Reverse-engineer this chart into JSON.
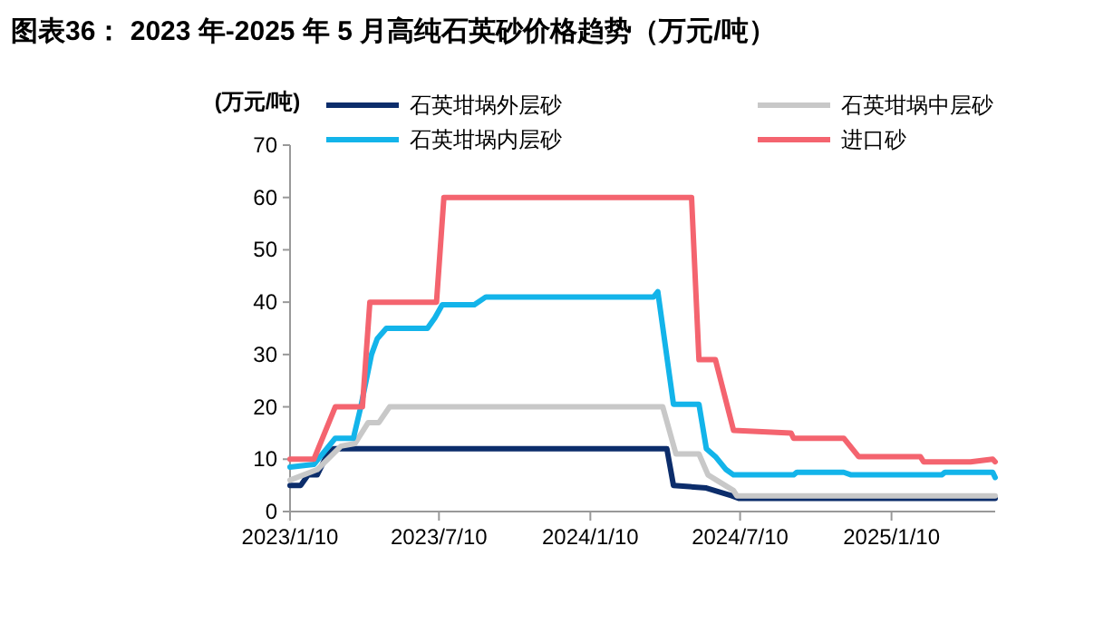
{
  "chart_data": {
    "type": "line",
    "title": "图表36： 2023 年-2025 年 5 月高纯石英砂价格趋势（万元/吨）",
    "ylabel": "(万元/吨)",
    "xlim": [
      "2023-01-10",
      "2025-05-16"
    ],
    "xticks": [
      {
        "value": "2023-01-10",
        "label": "2023/1/10"
      },
      {
        "value": "2023-07-10",
        "label": "2023/7/10"
      },
      {
        "value": "2024-01-10",
        "label": "2024/1/10"
      },
      {
        "value": "2024-07-10",
        "label": "2024/7/10"
      },
      {
        "value": "2025-01-10",
        "label": "2025/1/10"
      }
    ],
    "ylim": [
      0,
      70
    ],
    "yticks": [
      0,
      10,
      20,
      30,
      40,
      50,
      60,
      70
    ],
    "grid": false,
    "legend": "top",
    "marker": "none",
    "line_style": "solid",
    "series": [
      {
        "name": "石英坩埚外层砂",
        "color": "#0c2d6b",
        "x": [
          "2023-01-10",
          "2023-01-23",
          "2023-02-01",
          "2023-02-12",
          "2023-02-23",
          "2023-03-04",
          "2024-04-12",
          "2024-04-20",
          "2024-05-30",
          "2024-06-30",
          "2024-07-09",
          "2025-05-16"
        ],
        "values": [
          5,
          5,
          7,
          7,
          10.5,
          12,
          12,
          5,
          4.5,
          3,
          2.5,
          2.5
        ]
      },
      {
        "name": "石英坩埚中层砂",
        "color": "#c8c8c8",
        "x": [
          "2023-01-10",
          "2023-02-12",
          "2023-03-13",
          "2023-03-30",
          "2023-04-15",
          "2023-04-28",
          "2023-05-11",
          "2024-04-07",
          "2024-04-23",
          "2024-05-21",
          "2024-06-01",
          "2024-07-02",
          "2024-07-06",
          "2025-05-16"
        ],
        "values": [
          6,
          8,
          12.5,
          13,
          17,
          17,
          20,
          20,
          11,
          11,
          7,
          4,
          3,
          3
        ]
      },
      {
        "name": "石英坩埚内层砂",
        "color": "#13b4ea",
        "x": [
          "2023-01-10",
          "2023-02-08",
          "2023-03-06",
          "2023-03-28",
          "2023-04-06",
          "2023-04-19",
          "2023-04-26",
          "2023-05-07",
          "2023-06-26",
          "2023-07-05",
          "2023-07-14",
          "2023-08-22",
          "2023-09-05",
          "2024-03-27",
          "2024-04-01",
          "2024-04-20",
          "2024-05-21",
          "2024-05-30",
          "2024-06-10",
          "2024-06-23",
          "2024-07-02",
          "2024-09-13",
          "2024-09-17",
          "2024-11-13",
          "2024-11-22",
          "2025-03-12",
          "2025-03-16",
          "2025-05-13",
          "2025-05-16"
        ],
        "values": [
          8.5,
          9,
          14,
          14,
          20,
          30,
          33,
          35,
          35,
          37,
          39.5,
          39.5,
          41,
          41,
          42,
          20.5,
          20.5,
          12,
          10.5,
          8,
          7,
          7,
          7.5,
          7.5,
          7,
          7,
          7.5,
          7.5,
          6.5
        ]
      },
      {
        "name": "进口砂",
        "color": "#f4646f",
        "x": [
          "2023-01-10",
          "2023-02-08",
          "2023-03-06",
          "2023-04-08",
          "2023-04-17",
          "2023-07-07",
          "2023-07-16",
          "2024-05-12",
          "2024-05-21",
          "2024-06-10",
          "2024-07-02",
          "2024-09-10",
          "2024-09-13",
          "2024-11-13",
          "2024-12-01",
          "2025-02-14",
          "2025-02-18",
          "2025-04-16",
          "2025-05-13",
          "2025-05-16"
        ],
        "values": [
          10,
          10,
          20,
          20,
          40,
          40,
          60,
          60,
          29,
          29,
          15.5,
          15,
          14,
          14,
          10.5,
          10.5,
          9.5,
          9.5,
          10,
          9.5
        ]
      }
    ]
  }
}
